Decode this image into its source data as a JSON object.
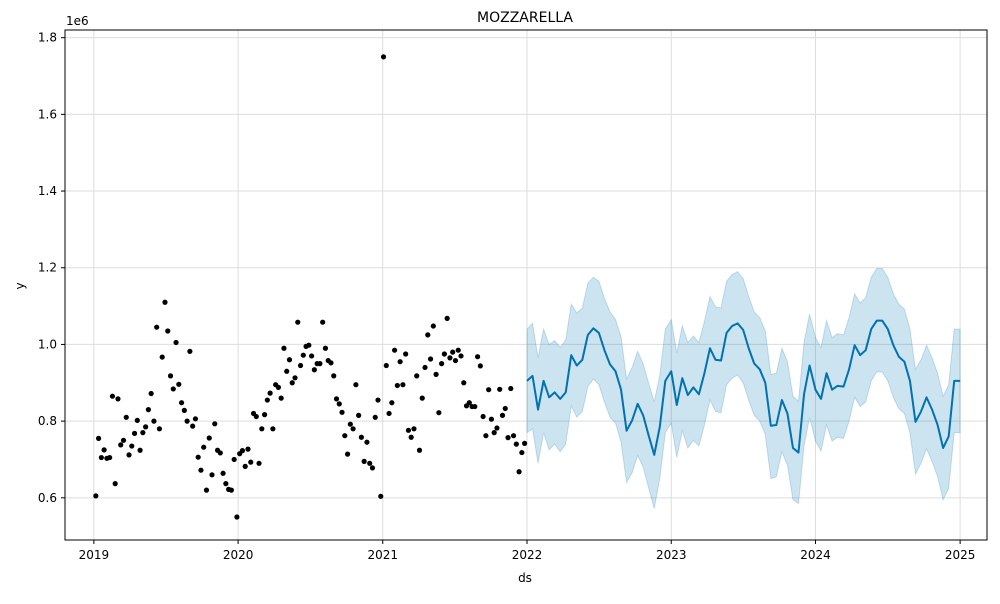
{
  "chart_data": {
    "type": "line",
    "title": "MOZZARELLA",
    "xlabel": "ds",
    "ylabel": "y",
    "y_scale_label": "1e6",
    "grid": true,
    "xlim": [
      "2018-10-20",
      "2025-03-10"
    ],
    "ylim": [
      0.49,
      1.82
    ],
    "x_ticks": [
      "2019-01-01",
      "2020-01-01",
      "2021-01-01",
      "2022-01-01",
      "2023-01-01",
      "2024-01-01",
      "2025-01-01"
    ],
    "x_tick_labels": [
      "2019",
      "2020",
      "2021",
      "2022",
      "2023",
      "2024",
      "2025"
    ],
    "y_ticks": [
      0.6,
      0.8,
      1.0,
      1.2,
      1.4,
      1.6,
      1.8
    ],
    "y_tick_labels": [
      "0.6",
      "0.8",
      "1.0",
      "1.2",
      "1.4",
      "1.6",
      "1.8"
    ],
    "colors": {
      "observed": "#000000",
      "forecast_line": "#0072B2",
      "uncertainty_band": "#0072B2",
      "grid": "#dddddd"
    },
    "series": [
      {
        "type": "scatter",
        "x": [
          "2019-01-06",
          "2019-01-13",
          "2019-01-20",
          "2019-01-27",
          "2019-02-03",
          "2019-02-10",
          "2019-02-17",
          "2019-02-24",
          "2019-03-03",
          "2019-03-10",
          "2019-03-17",
          "2019-03-24",
          "2019-03-31",
          "2019-04-07",
          "2019-04-14",
          "2019-04-21",
          "2019-04-28",
          "2019-05-05",
          "2019-05-12",
          "2019-05-19",
          "2019-05-26",
          "2019-06-02",
          "2019-06-09",
          "2019-06-16",
          "2019-06-23",
          "2019-06-30",
          "2019-07-07",
          "2019-07-14",
          "2019-07-21",
          "2019-07-28",
          "2019-08-04",
          "2019-08-11",
          "2019-08-18",
          "2019-08-25",
          "2019-09-01",
          "2019-09-08",
          "2019-09-15",
          "2019-09-22",
          "2019-09-29",
          "2019-10-06",
          "2019-10-13",
          "2019-10-20",
          "2019-10-27",
          "2019-11-03",
          "2019-11-10",
          "2019-11-17",
          "2019-11-24",
          "2019-12-01",
          "2019-12-08",
          "2019-12-15",
          "2019-12-22",
          "2019-12-29",
          "2020-01-05",
          "2020-01-12",
          "2020-01-19",
          "2020-01-26",
          "2020-02-02",
          "2020-02-09",
          "2020-02-16",
          "2020-02-23",
          "2020-03-01",
          "2020-03-08",
          "2020-03-15",
          "2020-03-22",
          "2020-03-29",
          "2020-04-05",
          "2020-04-12",
          "2020-04-19",
          "2020-04-26",
          "2020-05-03",
          "2020-05-10",
          "2020-05-17",
          "2020-05-24",
          "2020-05-31",
          "2020-06-07",
          "2020-06-14",
          "2020-06-21",
          "2020-06-28",
          "2020-07-05",
          "2020-07-12",
          "2020-07-19",
          "2020-07-26",
          "2020-08-02",
          "2020-08-09",
          "2020-08-16",
          "2020-08-23",
          "2020-08-30",
          "2020-09-06",
          "2020-09-13",
          "2020-09-20",
          "2020-09-27",
          "2020-10-04",
          "2020-10-11",
          "2020-10-18",
          "2020-10-25",
          "2020-11-01",
          "2020-11-08",
          "2020-11-15",
          "2020-11-22",
          "2020-11-29",
          "2020-12-06",
          "2020-12-13",
          "2020-12-20",
          "2020-12-27",
          "2021-01-03",
          "2021-01-10",
          "2021-01-17",
          "2021-01-24",
          "2021-01-31",
          "2021-02-07",
          "2021-02-14",
          "2021-02-21",
          "2021-02-28",
          "2021-03-07",
          "2021-03-14",
          "2021-03-21",
          "2021-03-28",
          "2021-04-04",
          "2021-04-11",
          "2021-04-18",
          "2021-04-25",
          "2021-05-02",
          "2021-05-09",
          "2021-05-16",
          "2021-05-23",
          "2021-05-30",
          "2021-06-06",
          "2021-06-13",
          "2021-06-20",
          "2021-06-27",
          "2021-07-04",
          "2021-07-11",
          "2021-07-18",
          "2021-07-25",
          "2021-08-01",
          "2021-08-08",
          "2021-08-15",
          "2021-08-22",
          "2021-08-29",
          "2021-09-05",
          "2021-09-12",
          "2021-09-19",
          "2021-09-26",
          "2021-10-03",
          "2021-10-10",
          "2021-10-17",
          "2021-10-24",
          "2021-10-31",
          "2021-11-07",
          "2021-11-14",
          "2021-11-21",
          "2021-11-28",
          "2021-12-05",
          "2021-12-12",
          "2021-12-19",
          "2021-12-26"
        ],
        "y": [
          0.605,
          0.755,
          0.705,
          0.725,
          0.703,
          0.705,
          0.865,
          0.637,
          0.858,
          0.738,
          0.75,
          0.81,
          0.712,
          0.735,
          0.768,
          0.802,
          0.724,
          0.77,
          0.785,
          0.83,
          0.872,
          0.8,
          1.045,
          0.78,
          0.967,
          1.11,
          1.035,
          0.918,
          0.884,
          1.005,
          0.896,
          0.848,
          0.828,
          0.8,
          0.982,
          0.787,
          0.806,
          0.706,
          0.672,
          0.732,
          0.62,
          0.756,
          0.66,
          0.793,
          0.724,
          0.717,
          0.664,
          0.637,
          0.622,
          0.62,
          0.7,
          0.55,
          0.715,
          0.723,
          0.682,
          0.727,
          0.693,
          0.82,
          0.812,
          0.69,
          0.78,
          0.817,
          0.855,
          0.873,
          0.78,
          0.895,
          0.888,
          0.86,
          0.99,
          0.93,
          0.96,
          0.9,
          0.913,
          1.058,
          0.945,
          0.972,
          0.995,
          0.998,
          0.97,
          0.934,
          0.95,
          0.95,
          1.058,
          0.99,
          0.958,
          0.952,
          0.918,
          0.858,
          0.845,
          0.823,
          0.762,
          0.714,
          0.792,
          0.78,
          0.895,
          0.815,
          0.758,
          0.695,
          0.745,
          0.69,
          0.678,
          0.81,
          0.855,
          0.604,
          1.75,
          0.945,
          0.82,
          0.848,
          0.985,
          0.893,
          0.955,
          0.895,
          0.975,
          0.776,
          0.758,
          0.78,
          0.918,
          0.724,
          0.86,
          0.94,
          1.025,
          0.962,
          1.048,
          0.922,
          0.822,
          0.95,
          0.975,
          1.068,
          0.965,
          0.98,
          0.958,
          0.985,
          0.97,
          0.9,
          0.84,
          0.848,
          0.838,
          0.838,
          0.968,
          0.944,
          0.812,
          0.762,
          0.882,
          0.805,
          0.77,
          0.782,
          0.883,
          0.815,
          0.833,
          0.757,
          0.885,
          0.762,
          0.74,
          0.668,
          0.718,
          0.742
        ]
      },
      {
        "type": "line",
        "x": [
          "2022-01-01",
          "2022-01-15",
          "2022-01-29",
          "2022-02-12",
          "2022-02-26",
          "2022-03-12",
          "2022-03-26",
          "2022-04-09",
          "2022-04-23",
          "2022-05-07",
          "2022-05-21",
          "2022-06-04",
          "2022-06-18",
          "2022-07-02",
          "2022-07-16",
          "2022-07-30",
          "2022-08-13",
          "2022-08-27",
          "2022-09-10",
          "2022-09-24",
          "2022-10-08",
          "2022-10-22",
          "2022-11-05",
          "2022-11-19",
          "2022-12-03",
          "2022-12-17",
          "2023-01-01",
          "2023-01-15",
          "2023-01-29",
          "2023-02-12",
          "2023-02-26",
          "2023-03-12",
          "2023-03-26",
          "2023-04-09",
          "2023-04-23",
          "2023-05-07",
          "2023-05-21",
          "2023-06-04",
          "2023-06-18",
          "2023-07-02",
          "2023-07-16",
          "2023-07-30",
          "2023-08-13",
          "2023-08-27",
          "2023-09-10",
          "2023-09-24",
          "2023-10-08",
          "2023-10-22",
          "2023-11-05",
          "2023-11-19",
          "2023-12-03",
          "2023-12-17",
          "2024-01-01",
          "2024-01-15",
          "2024-01-29",
          "2024-02-12",
          "2024-02-26",
          "2024-03-12",
          "2024-03-26",
          "2024-04-09",
          "2024-04-23",
          "2024-05-07",
          "2024-05-21",
          "2024-06-04",
          "2024-06-18",
          "2024-07-02",
          "2024-07-16",
          "2024-07-30",
          "2024-08-13",
          "2024-08-27",
          "2024-09-10",
          "2024-09-24",
          "2024-10-08",
          "2024-10-22",
          "2024-11-05",
          "2024-11-19",
          "2024-12-03",
          "2024-12-17",
          "2025-01-01"
        ],
        "y": [
          0.905,
          0.918,
          0.83,
          0.905,
          0.862,
          0.875,
          0.858,
          0.875,
          0.972,
          0.945,
          0.96,
          1.025,
          1.042,
          1.03,
          0.985,
          0.948,
          0.93,
          0.882,
          0.775,
          0.802,
          0.845,
          0.815,
          0.762,
          0.712,
          0.785,
          0.905,
          0.93,
          0.842,
          0.912,
          0.868,
          0.888,
          0.87,
          0.925,
          0.99,
          0.96,
          0.958,
          1.03,
          1.048,
          1.055,
          1.038,
          0.99,
          0.95,
          0.935,
          0.9,
          0.788,
          0.79,
          0.855,
          0.82,
          0.73,
          0.718,
          0.87,
          0.945,
          0.882,
          0.858,
          0.925,
          0.882,
          0.892,
          0.89,
          0.935,
          0.998,
          0.972,
          0.985,
          1.04,
          1.062,
          1.062,
          1.04,
          0.998,
          0.968,
          0.955,
          0.905,
          0.798,
          0.825,
          0.862,
          0.83,
          0.79,
          0.73,
          0.76,
          0.905,
          0.905
        ],
        "y_lower": [
          0.77,
          0.78,
          0.69,
          0.77,
          0.725,
          0.74,
          0.72,
          0.74,
          0.84,
          0.81,
          0.825,
          0.89,
          0.91,
          0.895,
          0.85,
          0.81,
          0.795,
          0.745,
          0.64,
          0.665,
          0.71,
          0.68,
          0.625,
          0.572,
          0.65,
          0.77,
          0.795,
          0.705,
          0.775,
          0.73,
          0.75,
          0.735,
          0.79,
          0.855,
          0.825,
          0.822,
          0.895,
          0.912,
          0.92,
          0.9,
          0.855,
          0.815,
          0.8,
          0.765,
          0.65,
          0.655,
          0.72,
          0.685,
          0.595,
          0.585,
          0.735,
          0.81,
          0.748,
          0.722,
          0.79,
          0.748,
          0.758,
          0.755,
          0.8,
          0.862,
          0.838,
          0.85,
          0.905,
          0.928,
          0.928,
          0.905,
          0.862,
          0.832,
          0.82,
          0.77,
          0.662,
          0.69,
          0.728,
          0.695,
          0.655,
          0.595,
          0.625,
          0.77,
          0.77
        ],
        "y_upper": [
          1.04,
          1.055,
          0.965,
          1.04,
          1.0,
          1.01,
          0.992,
          1.012,
          1.105,
          1.082,
          1.095,
          1.16,
          1.175,
          1.165,
          1.12,
          1.085,
          1.065,
          1.02,
          0.91,
          0.94,
          0.982,
          0.95,
          0.898,
          0.85,
          0.92,
          1.04,
          1.065,
          0.978,
          1.048,
          1.005,
          1.022,
          1.005,
          1.06,
          1.125,
          1.098,
          1.095,
          1.165,
          1.182,
          1.19,
          1.172,
          1.125,
          1.085,
          1.07,
          1.035,
          0.922,
          0.925,
          0.99,
          0.955,
          0.865,
          0.852,
          1.005,
          1.08,
          1.018,
          0.992,
          1.062,
          1.018,
          1.028,
          1.025,
          1.07,
          1.132,
          1.108,
          1.122,
          1.175,
          1.198,
          1.198,
          1.175,
          1.132,
          1.105,
          1.092,
          1.04,
          0.935,
          0.96,
          0.998,
          0.965,
          0.925,
          0.865,
          0.895,
          1.04,
          1.04
        ]
      }
    ]
  }
}
